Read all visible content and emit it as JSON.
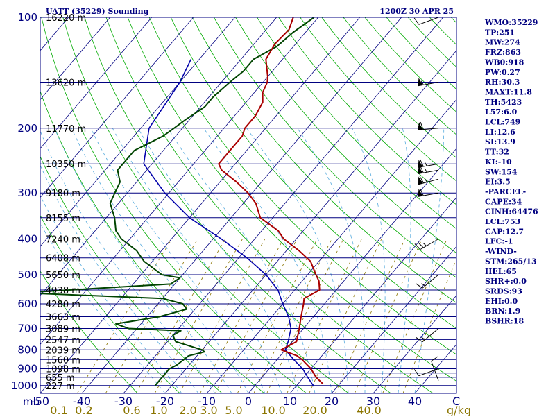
{
  "title_left": "UATT (35229) Sounding",
  "title_right": "1200Z 30 APR 25",
  "indices": [
    "WMO:35229",
    "TP:251",
    "MW:274",
    "FRZ:863",
    "WB0:918",
    "PW:0.27",
    "RH:30.3",
    "MAXT:11.8",
    "TH:5423",
    "L57:6.0",
    "LCL:749",
    "LI:12.6",
    "SI:13.9",
    "TT:32",
    "KI:-10",
    "SW:154",
    "EI:3.5",
    "-PARCEL-",
    "CAPE:34",
    "CINH:64476",
    "LCL:753",
    "CAP:12.7",
    "LFC:-1",
    "-WIND-",
    "STM:265/13",
    "HEL:65",
    "SHR+:0.0",
    "SRDS:93",
    "EHI:0.0",
    "BRN:1.9",
    "BSHR:18"
  ],
  "colors": {
    "frame": "#000080",
    "isobar": "#000080",
    "isotherm": "#000080",
    "dry_adiabat": "#00aa00",
    "moist_adiabat": "#55aadd",
    "mixing_ratio": "#8b7500",
    "temperature": "#aa0000",
    "dewpoint": "#004400",
    "parcel": "#0000aa",
    "wind_barb": "#000000",
    "axis_label": "#000080",
    "mixing_label": "#8b7500"
  },
  "chart_data": {
    "type": "skew-t log-p sounding",
    "pressure_axis": {
      "unit": "mb",
      "ticks": [
        100,
        200,
        300,
        400,
        500,
        600,
        700,
        800,
        900,
        1000
      ],
      "range": [
        100,
        1050
      ],
      "scale": "log"
    },
    "temperature_axis": {
      "unit": "C",
      "ticks": [
        -50,
        -40,
        -30,
        -20,
        -10,
        0,
        10,
        20,
        30,
        40
      ],
      "range": [
        -50,
        50
      ]
    },
    "mixing_ratio_axis": {
      "unit": "g/kg",
      "labels": [
        "0.1",
        "0.2",
        "0.6",
        "1.0",
        "2.0",
        "3.0",
        "5.0",
        "10.0",
        "20.0",
        "40.0"
      ]
    },
    "mb_label": "mb",
    "c_label": "C",
    "gkg_label": "g/kg",
    "isobar_lines": [
      100,
      150,
      200,
      250,
      300,
      350,
      400,
      450,
      500,
      550,
      600,
      650,
      700,
      750,
      800,
      850,
      900,
      925,
      950,
      1000
    ],
    "height_levels": [
      {
        "p": 100,
        "label": "16220 m"
      },
      {
        "p": 150,
        "label": "13620 m"
      },
      {
        "p": 200,
        "label": "11770 m"
      },
      {
        "p": 250,
        "label": "10350 m"
      },
      {
        "p": 300,
        "label": "9180 m"
      },
      {
        "p": 350,
        "label": "8155 m"
      },
      {
        "p": 400,
        "label": "7240 m"
      },
      {
        "p": 450,
        "label": "6408 m"
      },
      {
        "p": 500,
        "label": "5650 m"
      },
      {
        "p": 550,
        "label": "4938 m"
      },
      {
        "p": 600,
        "label": "4280 m"
      },
      {
        "p": 650,
        "label": "3663 m"
      },
      {
        "p": 700,
        "label": "3089 m"
      },
      {
        "p": 750,
        "label": "2547 m"
      },
      {
        "p": 800,
        "label": "2039 m"
      },
      {
        "p": 850,
        "label": "1560 m"
      },
      {
        "p": 900,
        "label": "1098 m"
      },
      {
        "p": 950,
        "label": "655 m"
      },
      {
        "p": 1000,
        "label": "227 m"
      }
    ],
    "temperature_profile": [
      [
        100,
        -66
      ],
      [
        108,
        -64.5
      ],
      [
        118,
        -65
      ],
      [
        130,
        -64
      ],
      [
        145,
        -60
      ],
      [
        150,
        -59
      ],
      [
        160,
        -58
      ],
      [
        170,
        -56
      ],
      [
        185,
        -55
      ],
      [
        200,
        -55
      ],
      [
        210,
        -54
      ],
      [
        220,
        -54
      ],
      [
        235,
        -54
      ],
      [
        250,
        -54
      ],
      [
        260,
        -52
      ],
      [
        280,
        -46
      ],
      [
        300,
        -41
      ],
      [
        320,
        -37
      ],
      [
        350,
        -33
      ],
      [
        380,
        -26
      ],
      [
        400,
        -23
      ],
      [
        430,
        -17
      ],
      [
        460,
        -12
      ],
      [
        500,
        -8
      ],
      [
        520,
        -6
      ],
      [
        550,
        -4
      ],
      [
        580,
        -6
      ],
      [
        600,
        -5
      ],
      [
        650,
        -3
      ],
      [
        700,
        -1
      ],
      [
        760,
        1
      ],
      [
        800,
        -1
      ],
      [
        830,
        4
      ],
      [
        850,
        6
      ],
      [
        900,
        10
      ],
      [
        950,
        13
      ],
      [
        990,
        16
      ]
    ],
    "dewpoint_profile": [
      [
        100,
        -61
      ],
      [
        110,
        -63
      ],
      [
        120,
        -64
      ],
      [
        130,
        -67
      ],
      [
        140,
        -67
      ],
      [
        150,
        -68
      ],
      [
        165,
        -69
      ],
      [
        175,
        -69
      ],
      [
        190,
        -71
      ],
      [
        200,
        -72
      ],
      [
        210,
        -73
      ],
      [
        220,
        -75
      ],
      [
        230,
        -77
      ],
      [
        250,
        -77
      ],
      [
        260,
        -77
      ],
      [
        280,
        -74
      ],
      [
        300,
        -73
      ],
      [
        320,
        -72
      ],
      [
        350,
        -68
      ],
      [
        380,
        -65
      ],
      [
        400,
        -62
      ],
      [
        430,
        -56
      ],
      [
        460,
        -52
      ],
      [
        500,
        -45
      ],
      [
        510,
        -40
      ],
      [
        530,
        -41
      ],
      [
        560,
        -75
      ],
      [
        580,
        -40
      ],
      [
        600,
        -34
      ],
      [
        620,
        -32
      ],
      [
        650,
        -37
      ],
      [
        680,
        -46
      ],
      [
        700,
        -42
      ],
      [
        710,
        -29
      ],
      [
        730,
        -30
      ],
      [
        760,
        -28
      ],
      [
        800,
        -20
      ],
      [
        810,
        -19
      ],
      [
        830,
        -22
      ],
      [
        880,
        -23
      ],
      [
        900,
        -24
      ],
      [
        1000,
        -24
      ]
    ],
    "parcel_profile": [
      [
        130,
        -82
      ],
      [
        150,
        -80
      ],
      [
        200,
        -78
      ],
      [
        250,
        -72
      ],
      [
        300,
        -61
      ],
      [
        350,
        -50
      ],
      [
        400,
        -38
      ],
      [
        450,
        -28
      ],
      [
        500,
        -20
      ],
      [
        550,
        -14
      ],
      [
        600,
        -10
      ],
      [
        650,
        -6
      ],
      [
        700,
        -3
      ],
      [
        760,
        -1
      ],
      [
        800,
        0
      ],
      [
        850,
        4
      ],
      [
        900,
        8
      ],
      [
        950,
        11
      ],
      [
        1000,
        14
      ]
    ],
    "wind_barbs": [
      {
        "p": 100,
        "dir": 250,
        "spd": 10
      },
      {
        "p": 150,
        "dir": 260,
        "spd": 55
      },
      {
        "p": 200,
        "dir": 265,
        "spd": 60
      },
      {
        "p": 250,
        "dir": 260,
        "spd": 65
      },
      {
        "p": 260,
        "dir": 260,
        "spd": 65
      },
      {
        "p": 275,
        "dir": 255,
        "spd": 65
      },
      {
        "p": 300,
        "dir": 260,
        "spd": 60
      },
      {
        "p": 400,
        "dir": 240,
        "spd": 25
      },
      {
        "p": 500,
        "dir": 230,
        "spd": 15
      },
      {
        "p": 700,
        "dir": 230,
        "spd": 15
      },
      {
        "p": 900,
        "dir": 250,
        "spd": 10
      },
      {
        "p": 970,
        "dir": 340,
        "spd": 10
      }
    ]
  }
}
